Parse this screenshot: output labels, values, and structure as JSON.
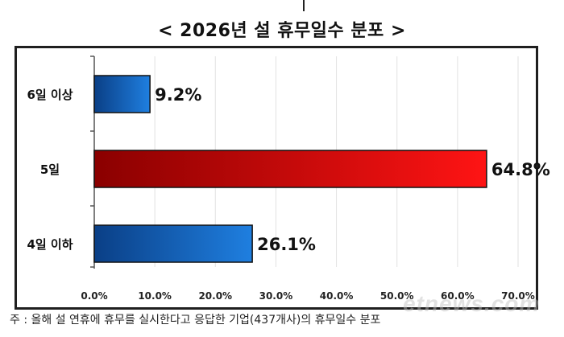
{
  "title": "< 2026년 설 휴무일수 분포 >",
  "footnote": "주 : 올해 설 연휴에 휴무를 실시한다고 응답한 기업(437개사)의 휴무일수 분포",
  "watermark": "etnews.com",
  "chart_data": {
    "type": "bar",
    "orientation": "horizontal",
    "categories": [
      "6일 이상",
      "5일",
      "4일 이하"
    ],
    "values": [
      9.2,
      64.8,
      26.1
    ],
    "value_labels": [
      "9.2%",
      "64.8%",
      "26.1%"
    ],
    "xlim": [
      0,
      70
    ],
    "xticks": [
      0,
      10,
      20,
      30,
      40,
      50,
      60,
      70
    ],
    "xtick_labels": [
      "0.0%",
      "10.0%",
      "20.0%",
      "30.0%",
      "40.0%",
      "50.0%",
      "60.0%",
      "70.0%"
    ],
    "grid": true,
    "legend": "none",
    "bar_colors": [
      [
        "#0a3f86",
        "#1f7fe0"
      ],
      [
        "#8a0000",
        "#ff1414"
      ],
      [
        "#0a3f86",
        "#1f7fe0"
      ]
    ]
  }
}
